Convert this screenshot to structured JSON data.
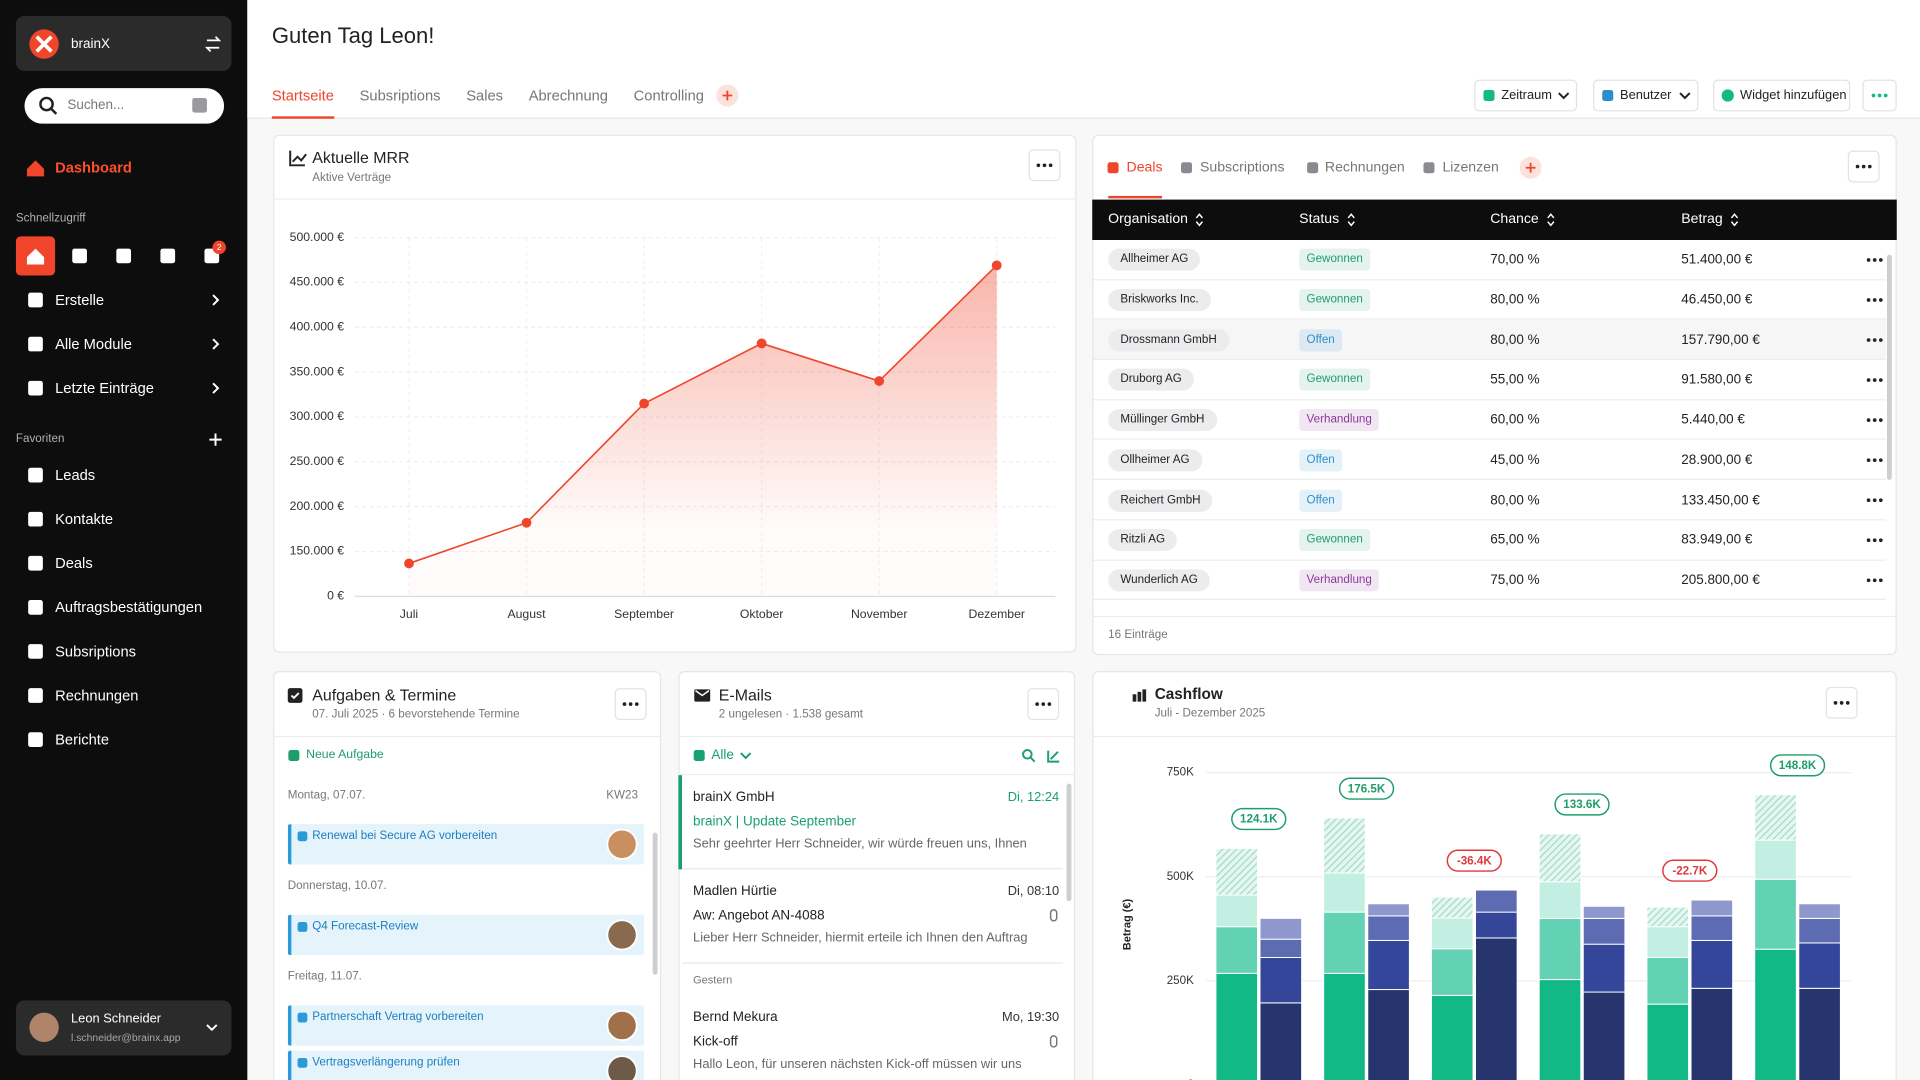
{
  "sidebar": {
    "brand": "brainX",
    "search": "Suchen...",
    "active": "Dashboard",
    "quick_title": "Schnellzugriff",
    "badge": "2",
    "menu": [
      "Erstelle",
      "Alle Module",
      "Letzte Einträge"
    ],
    "favorites_title": "Favoriten",
    "favorites": [
      "Leads",
      "Kontakte",
      "Deals",
      "Auftragsbestätigungen",
      "Subsriptions",
      "Rechnungen",
      "Berichte"
    ],
    "user": {
      "name": "Leon Schneider",
      "email": "l.schneider@brainx.app"
    }
  },
  "header": {
    "greeting": "Guten Tag Leon!",
    "tabs": [
      "Startseite",
      "Subsriptions",
      "Sales",
      "Abrechnung",
      "Controlling"
    ],
    "buttons": [
      "Zeitraum",
      "Benutzer",
      "Widget hinzufügen"
    ]
  },
  "deals": {
    "tabs": [
      "Deals",
      "Subscriptions",
      "Rechnungen",
      "Lizenzen"
    ],
    "columns": [
      "Organisation",
      "Status",
      "Chance",
      "Betrag"
    ],
    "rows": [
      {
        "organisation": "Allheimer AG",
        "status": "Gewonnen",
        "status_color": "#1f9d6c",
        "chance": "70,00 %",
        "betrag": "51.400,00 €"
      },
      {
        "organisation": "Briskworks Inc.",
        "status": "Gewonnen",
        "status_color": "#1f9d6c",
        "chance": "80,00 %",
        "betrag": "46.450,00 €"
      },
      {
        "organisation": "Drossmann GmbH",
        "status": "Offen",
        "status_color": "#2b8fcf",
        "chance": "80,00 %",
        "betrag": "157.790,00 €"
      },
      {
        "organisation": "Druborg AG",
        "status": "Gewonnen",
        "status_color": "#1f9d6c",
        "chance": "55,00 %",
        "betrag": "91.580,00 €"
      },
      {
        "organisation": "Müllinger GmbH",
        "status": "Verhandlung",
        "status_color": "#8c3a9c",
        "chance": "60,00 %",
        "betrag": "5.440,00 €"
      },
      {
        "organisation": "Ollheimer AG",
        "status": "Offen",
        "status_color": "#2b8fcf",
        "chance": "45,00 %",
        "betrag": "28.900,00 €"
      },
      {
        "organisation": "Reichert GmbH",
        "status": "Offen",
        "status_color": "#2b8fcf",
        "chance": "80,00 %",
        "betrag": "133.450,00 €"
      },
      {
        "organisation": "Ritzli AG",
        "status": "Gewonnen",
        "status_color": "#1f9d6c",
        "chance": "65,00 %",
        "betrag": "83.949,00 €"
      },
      {
        "organisation": "Wunderlich AG",
        "status": "Verhandlung",
        "status_color": "#8c3a9c",
        "chance": "75,00 %",
        "betrag": "205.800,00 €"
      }
    ],
    "footer": "16 Einträge"
  },
  "tasks": {
    "title": "Aufgaben & Termine",
    "subtitle": "07. Juli 2025 · 6 bevorstehende Termine",
    "new": "Neue Aufgabe",
    "days": [
      {
        "label": "Montag, 07.07.",
        "week": "KW23",
        "tasks": [
          "Renewal bei Secure AG vorbereiten"
        ]
      },
      {
        "label": "Donnerstag, 10.07.",
        "tasks": [
          "Q4 Forecast-Review"
        ]
      },
      {
        "label": "Freitag, 11.07.",
        "tasks": [
          "Partnerschaft Vertrag vorbereiten",
          "Vertragsverlängerung prüfen"
        ]
      }
    ]
  },
  "emails": {
    "title": "E-Mails",
    "subtitle": "2 ungelesen · 1.538 gesamt",
    "filter": "Alle",
    "today": [
      {
        "from": "brainX GmbH",
        "time": "Di, 12:24",
        "subject": "brainX | Update September",
        "preview": "Sehr geehrter Herr Schneider, wir würde freuen uns, Ihnen",
        "attachment": false
      },
      {
        "from": "Madlen Hürtie",
        "time": "Di, 08:10",
        "subject": "Aw: Angebot AN-4088",
        "preview": "Lieber Herr Schneider, hiermit erteile ich Ihnen den Auftrag",
        "attachment": true
      }
    ],
    "yesterday_label": "Gestern",
    "yesterday": [
      {
        "from": "Bernd Mekura",
        "time": "Mo, 19:30",
        "subject": "Kick-off",
        "preview": "Hallo Leon, für unseren nächsten Kick-off müssen wir uns",
        "attachment": true
      }
    ]
  },
  "chart_data": [
    {
      "type": "line",
      "title": "Aktuelle MRR",
      "subtitle": "Aktive Verträge",
      "categories": [
        "Juli",
        "August",
        "September",
        "Oktober",
        "November",
        "Dezember"
      ],
      "values": [
        110000,
        182000,
        315000,
        382000,
        340000,
        469000
      ],
      "color": "#f0452b",
      "ylim": [
        0,
        500000
      ],
      "yticks": [
        {
          "value": 0,
          "label": "0 €"
        },
        {
          "value": 150000,
          "label": "150.000 €"
        },
        {
          "value": 200000,
          "label": "200.000 €"
        },
        {
          "value": 250000,
          "label": "250.000 €"
        },
        {
          "value": 300000,
          "label": "300.000 €"
        },
        {
          "value": 350000,
          "label": "350.000 €"
        },
        {
          "value": 400000,
          "label": "400.000 €"
        },
        {
          "value": 450000,
          "label": "450.000 €"
        },
        {
          "value": 500000,
          "label": "500.000 €"
        }
      ],
      "grid": true
    },
    {
      "type": "bar",
      "stacked": true,
      "title": "Cashflow",
      "subtitle": "Juli - Dezember 2025",
      "y_label": "Betrag (€)",
      "categories": [
        null,
        null,
        null,
        null,
        null,
        null
      ],
      "series": [
        {
          "color": "#12b886",
          "group": 0,
          "values": [
            268000,
            268000,
            215000,
            253000,
            194000,
            326000
          ]
        },
        {
          "color": "#63d2b4",
          "group": 0,
          "values": [
            112000,
            147000,
            112000,
            147000,
            112000,
            168000
          ]
        },
        {
          "color": "#c2efe2",
          "group": 0,
          "values": [
            76000,
            94000,
            74000,
            88000,
            74000,
            94000
          ]
        },
        {
          "color": "#9fdcc8",
          "group": 0,
          "hatched": true,
          "values": [
            112000,
            132000,
            50000,
            115000,
            47000,
            109000
          ]
        },
        {
          "color": "#27356e",
          "group": 1,
          "values": [
            197000,
            229000,
            353000,
            223000,
            232000,
            232000
          ]
        },
        {
          "color": "#34469a",
          "group": 1,
          "values": [
            109000,
            118000,
            62000,
            115000,
            115000,
            109000
          ]
        },
        {
          "color": "#5d6bb3",
          "group": 1,
          "values": [
            44000,
            59000,
            53000,
            62000,
            59000,
            59000
          ]
        },
        {
          "color": "#8e98cc",
          "group": 1,
          "values": [
            50000,
            29000,
            0,
            29000,
            38000,
            35000
          ]
        }
      ],
      "annotations": [
        "124.1K",
        "176.5K",
        "-36.4K",
        "133.6K",
        "-22.7K",
        "148.8K"
      ],
      "annotation_colors": [
        "#1f9d6c",
        "#1f9d6c",
        "#e0393e",
        "#1f9d6c",
        "#e0393e",
        "#1f9d6c"
      ],
      "ylim": [
        0,
        750000
      ],
      "yticks": [
        0,
        {
          "value": 250000,
          "label": "250K"
        },
        {
          "value": 500000,
          "label": "500K"
        },
        {
          "value": 750000,
          "label": "750K"
        }
      ],
      "grid": true
    }
  ]
}
